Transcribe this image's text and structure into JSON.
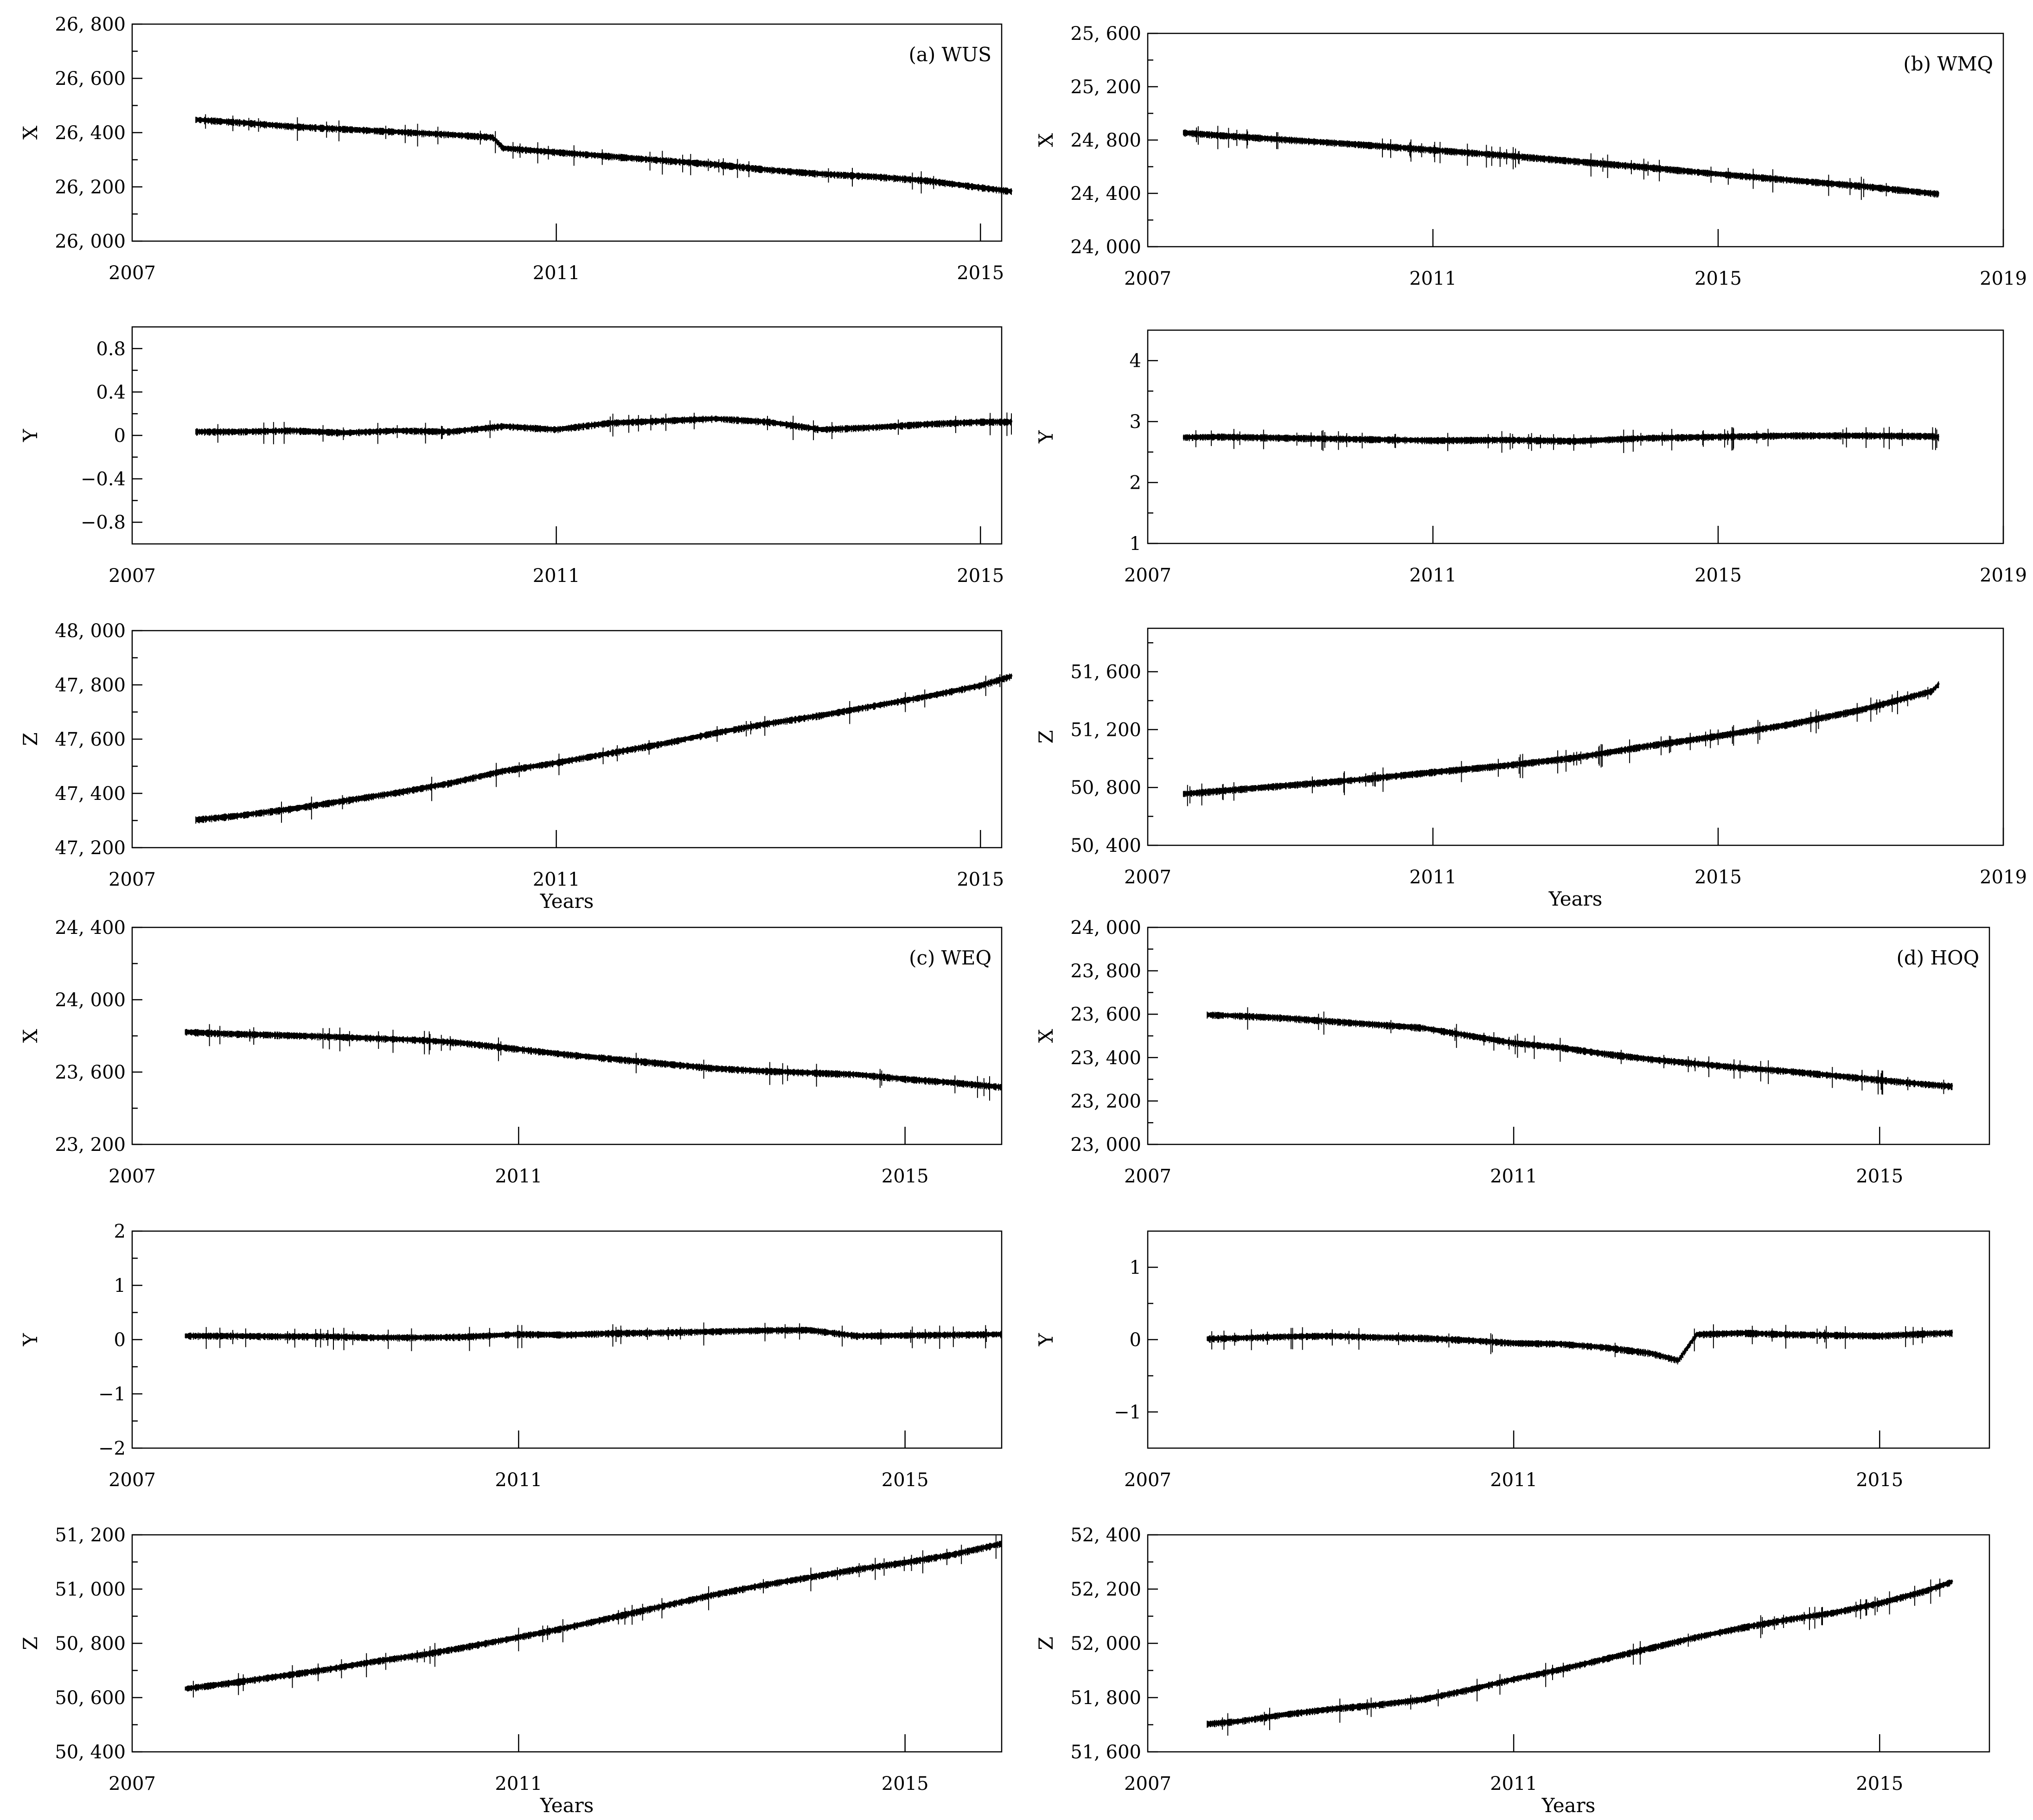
{
  "chart_data": [
    {
      "id": "wus-x",
      "type": "line",
      "panel_label": "(a) WUS",
      "ylabel": "X",
      "xlabel": "",
      "xlim": [
        2007,
        2015.2
      ],
      "ylim": [
        26000,
        26800
      ],
      "x_ticks": [
        2007,
        2011,
        2015
      ],
      "y_ticks": [
        26000,
        26200,
        26400,
        26600,
        26800
      ],
      "y_tick_labels": [
        "26, 000",
        "26, 200",
        "26, 400",
        "26, 600",
        "26, 800"
      ],
      "series": [
        {
          "x": [
            2007.6,
            2008.0,
            2008.5,
            2009.0,
            2009.5,
            2010.0,
            2010.4,
            2010.5,
            2011.0,
            2011.5,
            2012.0,
            2012.5,
            2013.0,
            2013.5,
            2014.0,
            2014.5,
            2015.0,
            2015.3
          ],
          "y": [
            26450,
            26440,
            26425,
            26415,
            26405,
            26395,
            26385,
            26345,
            26330,
            26315,
            26300,
            26285,
            26265,
            26250,
            26240,
            26225,
            26200,
            26185
          ]
        }
      ]
    },
    {
      "id": "wus-y",
      "type": "line",
      "panel_label": "",
      "ylabel": "Y",
      "xlabel": "",
      "xlim": [
        2007,
        2015.2
      ],
      "ylim": [
        -1,
        1
      ],
      "x_ticks": [
        2007,
        2011,
        2015
      ],
      "y_ticks": [
        -0.8,
        -0.4,
        0,
        0.4,
        0.8
      ],
      "y_tick_labels": [
        "−0.8",
        "−0.4",
        "0",
        "0.4",
        "0.8"
      ],
      "series": [
        {
          "x": [
            2007.6,
            2008.0,
            2008.5,
            2009.0,
            2009.5,
            2010.0,
            2010.5,
            2011.0,
            2011.5,
            2012.0,
            2012.5,
            2013.0,
            2013.5,
            2014.0,
            2014.5,
            2015.0,
            2015.3
          ],
          "y": [
            0.04,
            0.04,
            0.05,
            0.03,
            0.05,
            0.04,
            0.09,
            0.06,
            0.12,
            0.14,
            0.16,
            0.13,
            0.06,
            0.08,
            0.11,
            0.13,
            0.13
          ]
        }
      ]
    },
    {
      "id": "wus-z",
      "type": "line",
      "panel_label": "",
      "ylabel": "Z",
      "xlabel": "Years",
      "xlim": [
        2007,
        2015.2
      ],
      "ylim": [
        47200,
        48000
      ],
      "x_ticks": [
        2007,
        2011,
        2015
      ],
      "y_ticks": [
        47200,
        47400,
        47600,
        47800,
        48000
      ],
      "y_tick_labels": [
        "47, 200",
        "47, 400",
        "47, 600",
        "47, 800",
        "48, 000"
      ],
      "series": [
        {
          "x": [
            2007.6,
            2008.0,
            2008.5,
            2009.0,
            2009.5,
            2010.0,
            2010.5,
            2011.0,
            2011.5,
            2012.0,
            2012.5,
            2013.0,
            2013.5,
            2014.0,
            2014.5,
            2015.0,
            2015.3
          ],
          "y": [
            47305,
            47320,
            47345,
            47375,
            47405,
            47440,
            47485,
            47515,
            47550,
            47585,
            47625,
            47660,
            47690,
            47725,
            47760,
            47800,
            47835
          ]
        }
      ]
    },
    {
      "id": "wmq-x",
      "type": "line",
      "panel_label": "(b) WMQ",
      "ylabel": "X",
      "xlabel": "",
      "xlim": [
        2007,
        2019
      ],
      "ylim": [
        24000,
        25600
      ],
      "x_ticks": [
        2007,
        2011,
        2015,
        2019
      ],
      "y_ticks": [
        24000,
        24400,
        24800,
        25200,
        25600
      ],
      "y_tick_labels": [
        "24, 000",
        "24, 400",
        "24, 800",
        "25, 200",
        "25, 600"
      ],
      "series": [
        {
          "x": [
            2007.5,
            2008.0,
            2009.0,
            2010.0,
            2011.0,
            2012.0,
            2013.0,
            2014.0,
            2015.0,
            2016.0,
            2017.0,
            2018.0,
            2018.1
          ],
          "y": [
            24860,
            24840,
            24805,
            24770,
            24730,
            24690,
            24645,
            24600,
            24550,
            24505,
            24460,
            24405,
            24400
          ]
        }
      ]
    },
    {
      "id": "wmq-y",
      "type": "line",
      "panel_label": "",
      "ylabel": "Y",
      "xlabel": "",
      "xlim": [
        2007,
        2019
      ],
      "ylim": [
        1,
        4.5
      ],
      "x_ticks": [
        2007,
        2011,
        2015,
        2019
      ],
      "y_ticks": [
        1,
        2,
        3,
        4
      ],
      "y_tick_labels": [
        "1",
        "2",
        "3",
        "4"
      ],
      "series": [
        {
          "x": [
            2007.5,
            2008.0,
            2009.0,
            2010.0,
            2011.0,
            2012.0,
            2013.0,
            2014.0,
            2015.0,
            2016.0,
            2017.0,
            2018.0,
            2018.1
          ],
          "y": [
            2.75,
            2.76,
            2.74,
            2.72,
            2.7,
            2.71,
            2.69,
            2.74,
            2.76,
            2.78,
            2.78,
            2.77,
            2.75
          ]
        }
      ]
    },
    {
      "id": "wmq-z",
      "type": "line",
      "panel_label": "",
      "ylabel": "Z",
      "xlabel": "Years",
      "xlim": [
        2007,
        2019
      ],
      "ylim": [
        50400,
        51900
      ],
      "x_ticks": [
        2007,
        2011,
        2015,
        2019
      ],
      "y_ticks": [
        50400,
        50800,
        51200,
        51600
      ],
      "y_tick_labels": [
        "50, 400",
        "50, 800",
        "51, 200",
        "51, 600"
      ],
      "series": [
        {
          "x": [
            2007.5,
            2008.0,
            2009.0,
            2010.0,
            2011.0,
            2012.0,
            2013.0,
            2014.0,
            2015.0,
            2016.0,
            2017.0,
            2018.0,
            2018.1
          ],
          "y": [
            50760,
            50780,
            50820,
            50860,
            50910,
            50955,
            51010,
            51090,
            51160,
            51240,
            51340,
            51470,
            51520
          ]
        }
      ]
    },
    {
      "id": "weq-x",
      "type": "line",
      "panel_label": "(c) WEQ",
      "ylabel": "X",
      "xlabel": "",
      "xlim": [
        2007,
        2016
      ],
      "ylim": [
        23200,
        24400
      ],
      "x_ticks": [
        2007,
        2011,
        2015
      ],
      "y_ticks": [
        23200,
        23600,
        24000,
        24400
      ],
      "y_tick_labels": [
        "23, 200",
        "23, 600",
        "24, 000",
        "24, 400"
      ],
      "series": [
        {
          "x": [
            2007.55,
            2008.0,
            2008.5,
            2009.0,
            2009.5,
            2010.0,
            2010.4,
            2011.0,
            2011.5,
            2012.0,
            2012.5,
            2013.0,
            2013.5,
            2014.0,
            2014.5,
            2015.0,
            2015.5,
            2016.0
          ],
          "y": [
            23825,
            23815,
            23808,
            23800,
            23790,
            23780,
            23765,
            23730,
            23700,
            23675,
            23650,
            23625,
            23610,
            23600,
            23590,
            23565,
            23545,
            23520
          ]
        }
      ]
    },
    {
      "id": "weq-y",
      "type": "line",
      "panel_label": "",
      "ylabel": "Y",
      "xlabel": "",
      "xlim": [
        2007,
        2016
      ],
      "ylim": [
        -2,
        2
      ],
      "x_ticks": [
        2007,
        2011,
        2015
      ],
      "y_ticks": [
        -2,
        -1,
        0,
        1,
        2
      ],
      "y_tick_labels": [
        "−2",
        "−1",
        "0",
        "1",
        "2"
      ],
      "series": [
        {
          "x": [
            2007.55,
            2008.0,
            2008.5,
            2009.0,
            2009.5,
            2010.0,
            2010.4,
            2011.0,
            2011.5,
            2012.0,
            2012.5,
            2013.0,
            2013.5,
            2014.0,
            2014.5,
            2015.0,
            2015.5,
            2016.0
          ],
          "y": [
            0.08,
            0.08,
            0.07,
            0.07,
            0.05,
            0.05,
            0.06,
            0.11,
            0.1,
            0.13,
            0.14,
            0.16,
            0.18,
            0.19,
            0.08,
            0.09,
            0.1,
            0.11
          ]
        }
      ]
    },
    {
      "id": "weq-z",
      "type": "line",
      "panel_label": "",
      "ylabel": "Z",
      "xlabel": "Years",
      "xlim": [
        2007,
        2016
      ],
      "ylim": [
        50400,
        51200
      ],
      "x_ticks": [
        2007,
        2011,
        2015
      ],
      "y_ticks": [
        50400,
        50600,
        50800,
        51000,
        51200
      ],
      "y_tick_labels": [
        "50, 400",
        "50, 600",
        "50, 800",
        "51, 000",
        "51, 200"
      ],
      "series": [
        {
          "x": [
            2007.55,
            2008.0,
            2008.5,
            2009.0,
            2009.5,
            2010.0,
            2010.4,
            2011.0,
            2011.5,
            2012.0,
            2012.5,
            2013.0,
            2013.5,
            2014.0,
            2014.5,
            2015.0,
            2015.5,
            2016.0
          ],
          "y": [
            50635,
            50655,
            50680,
            50705,
            50735,
            50760,
            50785,
            50825,
            50860,
            50900,
            50940,
            50980,
            51015,
            51045,
            51075,
            51100,
            51130,
            51170
          ]
        }
      ]
    },
    {
      "id": "hoq-x",
      "type": "line",
      "panel_label": "(d) HOQ",
      "ylabel": "X",
      "xlabel": "",
      "xlim": [
        2007,
        2016.2
      ],
      "ylim": [
        23000,
        24000
      ],
      "x_ticks": [
        2007,
        2011,
        2015
      ],
      "y_ticks": [
        23000,
        23200,
        23400,
        23600,
        23800,
        24000
      ],
      "y_tick_labels": [
        "23, 000",
        "23, 200",
        "23, 400",
        "23, 600",
        "23, 800",
        "24, 000"
      ],
      "series": [
        {
          "x": [
            2007.65,
            2008.0,
            2008.5,
            2009.0,
            2009.5,
            2010.0,
            2010.5,
            2011.0,
            2011.5,
            2012.0,
            2012.5,
            2013.0,
            2013.5,
            2014.0,
            2014.5,
            2015.0,
            2015.5,
            2015.8
          ],
          "y": [
            23600,
            23595,
            23585,
            23570,
            23555,
            23540,
            23505,
            23470,
            23450,
            23420,
            23395,
            23375,
            23355,
            23340,
            23320,
            23300,
            23280,
            23270
          ]
        }
      ]
    },
    {
      "id": "hoq-y",
      "type": "line",
      "panel_label": "",
      "ylabel": "Y",
      "xlabel": "",
      "xlim": [
        2007,
        2016.2
      ],
      "ylim": [
        -1.5,
        1.5
      ],
      "x_ticks": [
        2007,
        2011,
        2015
      ],
      "y_ticks": [
        -1,
        0,
        1
      ],
      "y_tick_labels": [
        "−1",
        "0",
        "1"
      ],
      "series": [
        {
          "x": [
            2007.65,
            2008.0,
            2008.5,
            2009.0,
            2009.5,
            2010.0,
            2010.5,
            2011.0,
            2011.5,
            2012.0,
            2012.5,
            2012.8,
            2013.0,
            2013.5,
            2014.0,
            2014.5,
            2015.0,
            2015.5,
            2015.8
          ],
          "y": [
            0.02,
            0.03,
            0.05,
            0.06,
            0.04,
            0.03,
            0.0,
            -0.04,
            -0.05,
            -0.1,
            -0.18,
            -0.28,
            0.08,
            0.1,
            0.08,
            0.07,
            0.06,
            0.09,
            0.1
          ]
        }
      ]
    },
    {
      "id": "hoq-z",
      "type": "line",
      "panel_label": "",
      "ylabel": "Z",
      "xlabel": "Years",
      "xlim": [
        2007,
        2016.2
      ],
      "ylim": [
        51600,
        52400
      ],
      "x_ticks": [
        2007,
        2011,
        2015
      ],
      "y_ticks": [
        51600,
        51800,
        52000,
        52200,
        52400
      ],
      "y_tick_labels": [
        "51, 600",
        "51, 800",
        "52, 000",
        "52, 200",
        "52, 400"
      ],
      "series": [
        {
          "x": [
            2007.65,
            2008.0,
            2008.5,
            2009.0,
            2009.5,
            2010.0,
            2010.5,
            2011.0,
            2011.5,
            2012.0,
            2012.5,
            2013.0,
            2013.5,
            2014.0,
            2014.5,
            2015.0,
            2015.5,
            2015.8
          ],
          "y": [
            51705,
            51715,
            51740,
            51760,
            51775,
            51795,
            51830,
            51870,
            51905,
            51945,
            51985,
            52025,
            52060,
            52090,
            52115,
            52150,
            52195,
            52230
          ]
        }
      ]
    }
  ]
}
